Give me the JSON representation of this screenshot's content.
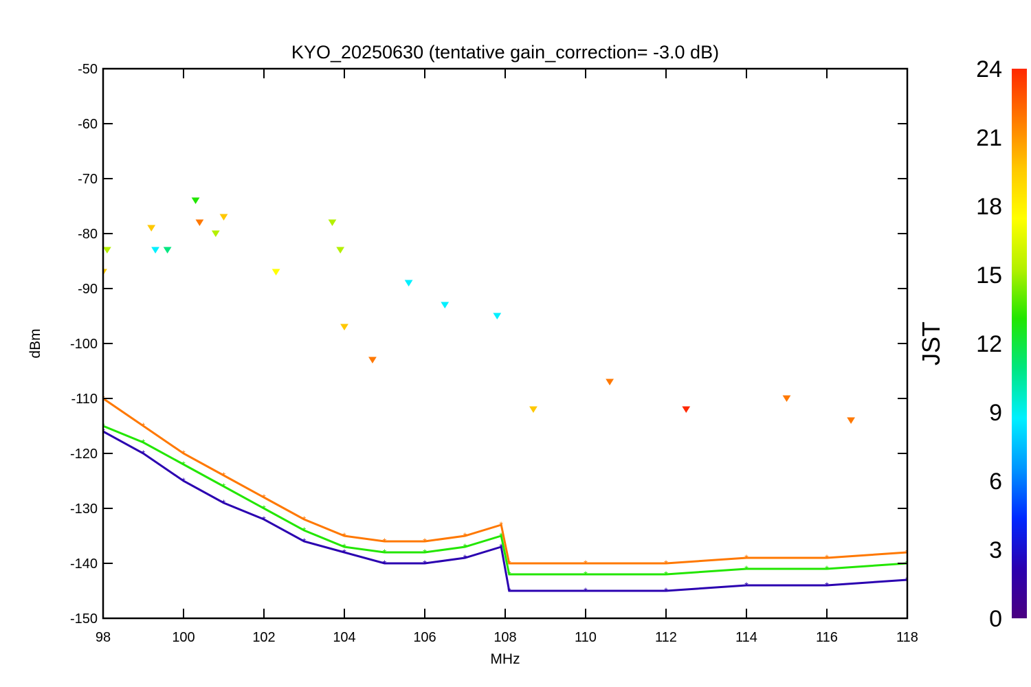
{
  "chart_data": {
    "type": "scatter",
    "title": "KYO_20250630 (tentative gain_correction= -3.0 dB)",
    "xlabel": "MHz",
    "ylabel": "dBm",
    "xlim": [
      98,
      118
    ],
    "ylim": [
      -150,
      -50
    ],
    "x_ticks": [
      "98",
      "100",
      "102",
      "104",
      "106",
      "108",
      "110",
      "112",
      "114",
      "116",
      "118"
    ],
    "y_ticks": [
      "-50",
      "-60",
      "-70",
      "-80",
      "-90",
      "-100",
      "-110",
      "-120",
      "-130",
      "-140",
      "-150"
    ],
    "colorbar": {
      "label": "JST",
      "range": [
        0,
        24
      ],
      "ticks": [
        "24",
        "21",
        "18",
        "15",
        "12",
        "9",
        "6",
        "3",
        "0"
      ],
      "colormap": [
        "#4b0082",
        "#2a00b0",
        "#0028ff",
        "#0096ff",
        "#00f0ff",
        "#00e680",
        "#22e600",
        "#b4f000",
        "#ffff00",
        "#ffc800",
        "#ff7800",
        "#ff2800"
      ]
    },
    "floor_by_hour": [
      {
        "jst": 2,
        "points": [
          [
            98.0,
            -116
          ],
          [
            99.0,
            -120
          ],
          [
            100.0,
            -125
          ],
          [
            101.0,
            -129
          ],
          [
            102.0,
            -132
          ],
          [
            103.0,
            -136
          ],
          [
            104.0,
            -138
          ],
          [
            105.0,
            -140
          ],
          [
            106.0,
            -140
          ],
          [
            107.0,
            -139
          ],
          [
            107.9,
            -137
          ],
          [
            108.1,
            -145
          ],
          [
            110.0,
            -145
          ],
          [
            112.0,
            -145
          ],
          [
            114.0,
            -144
          ],
          [
            116.0,
            -144
          ],
          [
            118.0,
            -143
          ]
        ]
      },
      {
        "jst": 12,
        "points": [
          [
            98.0,
            -115
          ],
          [
            99.0,
            -118
          ],
          [
            100.0,
            -122
          ],
          [
            101.0,
            -126
          ],
          [
            102.0,
            -130
          ],
          [
            103.0,
            -134
          ],
          [
            104.0,
            -137
          ],
          [
            105.0,
            -138
          ],
          [
            106.0,
            -138
          ],
          [
            107.0,
            -137
          ],
          [
            107.9,
            -135
          ],
          [
            108.1,
            -142
          ],
          [
            110.0,
            -142
          ],
          [
            112.0,
            -142
          ],
          [
            114.0,
            -141
          ],
          [
            116.0,
            -141
          ],
          [
            118.0,
            -140
          ]
        ]
      },
      {
        "jst": 22,
        "points": [
          [
            98.0,
            -110
          ],
          [
            99.0,
            -115
          ],
          [
            100.0,
            -120
          ],
          [
            101.0,
            -124
          ],
          [
            102.0,
            -128
          ],
          [
            103.0,
            -132
          ],
          [
            104.0,
            -135
          ],
          [
            105.0,
            -136
          ],
          [
            106.0,
            -136
          ],
          [
            107.0,
            -135
          ],
          [
            107.9,
            -133
          ],
          [
            108.1,
            -140
          ],
          [
            110.0,
            -140
          ],
          [
            112.0,
            -140
          ],
          [
            114.0,
            -139
          ],
          [
            116.0,
            -139
          ],
          [
            118.0,
            -138
          ]
        ]
      }
    ],
    "peaks": [
      {
        "x": 98.0,
        "y": -87,
        "jst": 20
      },
      {
        "x": 98.1,
        "y": -83,
        "jst": 16
      },
      {
        "x": 99.2,
        "y": -79,
        "jst": 20
      },
      {
        "x": 99.3,
        "y": -83,
        "jst": 8
      },
      {
        "x": 99.6,
        "y": -83,
        "jst": 10
      },
      {
        "x": 100.3,
        "y": -74,
        "jst": 14
      },
      {
        "x": 100.4,
        "y": -78,
        "jst": 22
      },
      {
        "x": 100.8,
        "y": -80,
        "jst": 15
      },
      {
        "x": 101.0,
        "y": -77,
        "jst": 19
      },
      {
        "x": 102.3,
        "y": -87,
        "jst": 18
      },
      {
        "x": 103.7,
        "y": -78,
        "jst": 15
      },
      {
        "x": 103.9,
        "y": -83,
        "jst": 16
      },
      {
        "x": 104.0,
        "y": -97,
        "jst": 20
      },
      {
        "x": 104.7,
        "y": -103,
        "jst": 21
      },
      {
        "x": 105.6,
        "y": -89,
        "jst": 9
      },
      {
        "x": 106.5,
        "y": -93,
        "jst": 9
      },
      {
        "x": 107.8,
        "y": -95,
        "jst": 9
      },
      {
        "x": 108.7,
        "y": -112,
        "jst": 20
      },
      {
        "x": 110.6,
        "y": -107,
        "jst": 21
      },
      {
        "x": 112.5,
        "y": -112,
        "jst": 23
      },
      {
        "x": 115.0,
        "y": -110,
        "jst": 22
      },
      {
        "x": 116.6,
        "y": -114,
        "jst": 22
      }
    ]
  }
}
